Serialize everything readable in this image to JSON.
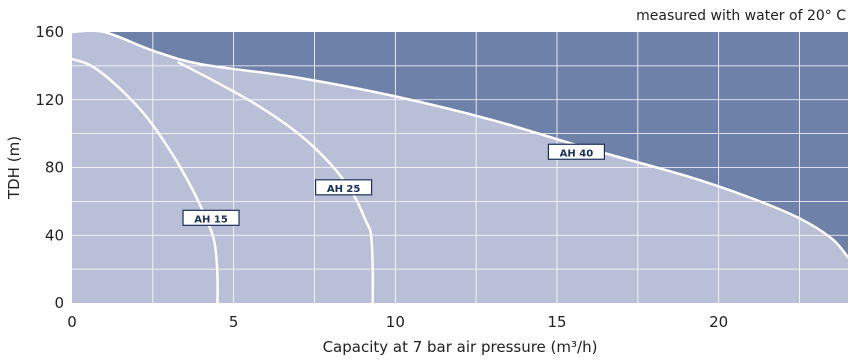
{
  "chart_data": {
    "type": "line",
    "title": "",
    "note": "measured with water of 20° C",
    "xlabel": "Capacity at 7 bar air pressure (m³/h)",
    "ylabel": "TDH (m)",
    "xlim": [
      0,
      24
    ],
    "ylim": [
      0,
      160
    ],
    "x_ticks": [
      0,
      5,
      10,
      15,
      20
    ],
    "x_tick_labels": [
      "0",
      "5",
      "10",
      "15",
      "20"
    ],
    "y_ticks": [
      0,
      40,
      80,
      120,
      160
    ],
    "y_tick_labels": [
      "0",
      "40",
      "80",
      "120",
      "160"
    ],
    "grid": true,
    "colors": {
      "plot_bg": "#6e81a9",
      "area_fill": "#b9bfd6",
      "grid": "#ffffff",
      "curve": "#ffffff",
      "label_border": "#1a2f5a"
    },
    "series": [
      {
        "name": "AH 15",
        "x": [
          0,
          0.6,
          1.4,
          2.3,
          3.1,
          3.7,
          4.1,
          4.35,
          4.45,
          4.5,
          4.5
        ],
        "y": [
          144,
          140,
          128,
          110,
          88,
          68,
          52,
          40,
          30,
          15,
          0
        ],
        "label_at": [
          4.3,
          50
        ]
      },
      {
        "name": "AH 25",
        "x": [
          3.3,
          4.5,
          5.8,
          7.0,
          8.0,
          8.7,
          9.1,
          9.25,
          9.3,
          9.3
        ],
        "y": [
          142,
          130,
          116,
          100,
          82,
          64,
          48,
          40,
          20,
          0
        ],
        "label_at": [
          8.4,
          68
        ]
      },
      {
        "name": "AH 40",
        "x": [
          0,
          1.0,
          2.5,
          4.0,
          7.0,
          10.0,
          13.0,
          16.0,
          19.0,
          21.0,
          22.5,
          23.5,
          24
        ],
        "y": [
          160,
          160,
          149,
          141,
          133,
          122,
          108,
          91,
          75,
          62,
          50,
          38,
          27
        ],
        "label_at": [
          15.6,
          89
        ]
      }
    ]
  }
}
